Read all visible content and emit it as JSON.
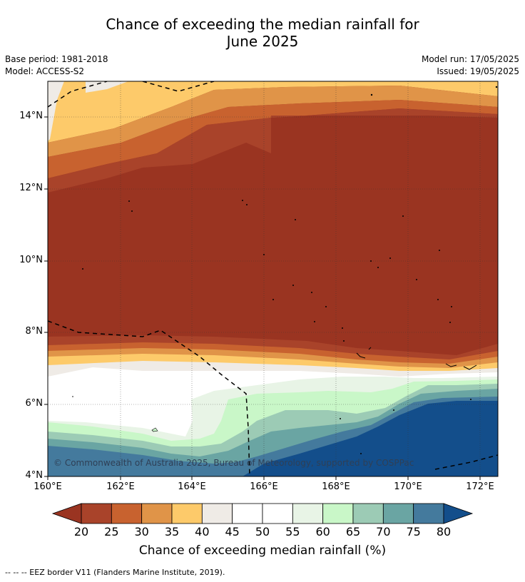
{
  "title_line1": "Chance of exceeding the median rainfall for",
  "title_line2": "June 2025",
  "base_period": "Base period: 1981-2018",
  "model": "Model: ACCESS-S2",
  "model_run": "Model run: 17/05/2025",
  "issued": "Issued: 19/05/2025",
  "lat_labels": [
    "14°N",
    "12°N",
    "10°N",
    "8°N",
    "6°N",
    "4°N"
  ],
  "lon_labels": [
    "160°E",
    "162°E",
    "164°E",
    "166°E",
    "168°E",
    "170°E",
    "172°E"
  ],
  "copyright": "© Commonwealth of Australia 2025, Bureau of Meteorology, supported by COSPPac",
  "colorbar": {
    "ticks": [
      "20",
      "25",
      "30",
      "35",
      "40",
      "45",
      "50",
      "55",
      "60",
      "65",
      "70",
      "75",
      "80"
    ],
    "colors": [
      "#a9432a",
      "#c8622f",
      "#e09448",
      "#fdca6a",
      "#efebe6",
      "#ffffff",
      "#ffffff",
      "#e8f4e6",
      "#c9f7c8",
      "#9ccbb5",
      "#6aa5a3",
      "#447a9d"
    ],
    "under_color": "#9a3421",
    "over_color": "#134e8b",
    "label": "Chance of exceeding median rainfall (%)"
  },
  "footer": "--  --  -- EEZ border V11 (Flanders Marine Institute, 2019)."
}
